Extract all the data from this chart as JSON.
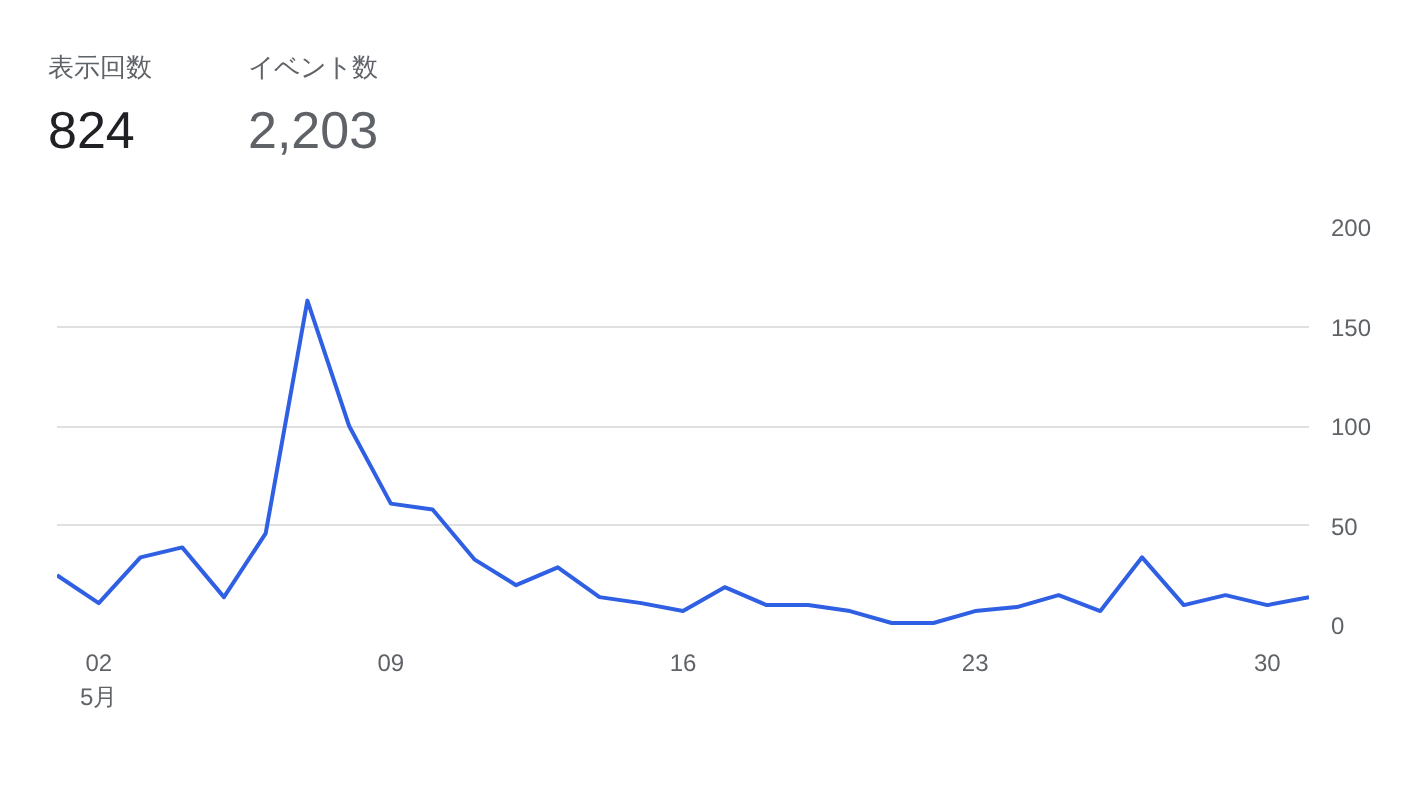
{
  "chart_data": {
    "type": "line",
    "annotations": [
      "表示回数",
      "824",
      "イベント数",
      "2,203"
    ],
    "x": [
      1,
      2,
      3,
      4,
      5,
      6,
      7,
      8,
      9,
      10,
      11,
      12,
      13,
      14,
      15,
      16,
      17,
      18,
      19,
      20,
      21,
      22,
      23,
      24,
      25,
      26,
      27,
      28,
      29,
      30,
      31
    ],
    "xlim": [
      1,
      31
    ],
    "xticks": [
      {
        "value": 2,
        "label": "02\n5月"
      },
      {
        "value": 9,
        "label": "09"
      },
      {
        "value": 16,
        "label": "16"
      },
      {
        "value": 23,
        "label": "23"
      },
      {
        "value": 30,
        "label": "30"
      }
    ],
    "ylim": [
      0,
      200
    ],
    "yticks": [
      0,
      50,
      100,
      150,
      200
    ],
    "grid": "y",
    "series": [
      {
        "color": "#2f5fe3",
        "values": [
          25,
          11,
          34,
          39,
          14,
          46,
          163,
          100,
          61,
          58,
          33,
          20,
          29,
          14,
          11,
          7,
          19,
          10,
          10,
          7,
          1,
          1,
          7,
          9,
          15,
          7,
          34,
          10,
          15,
          10,
          14
        ]
      }
    ]
  }
}
